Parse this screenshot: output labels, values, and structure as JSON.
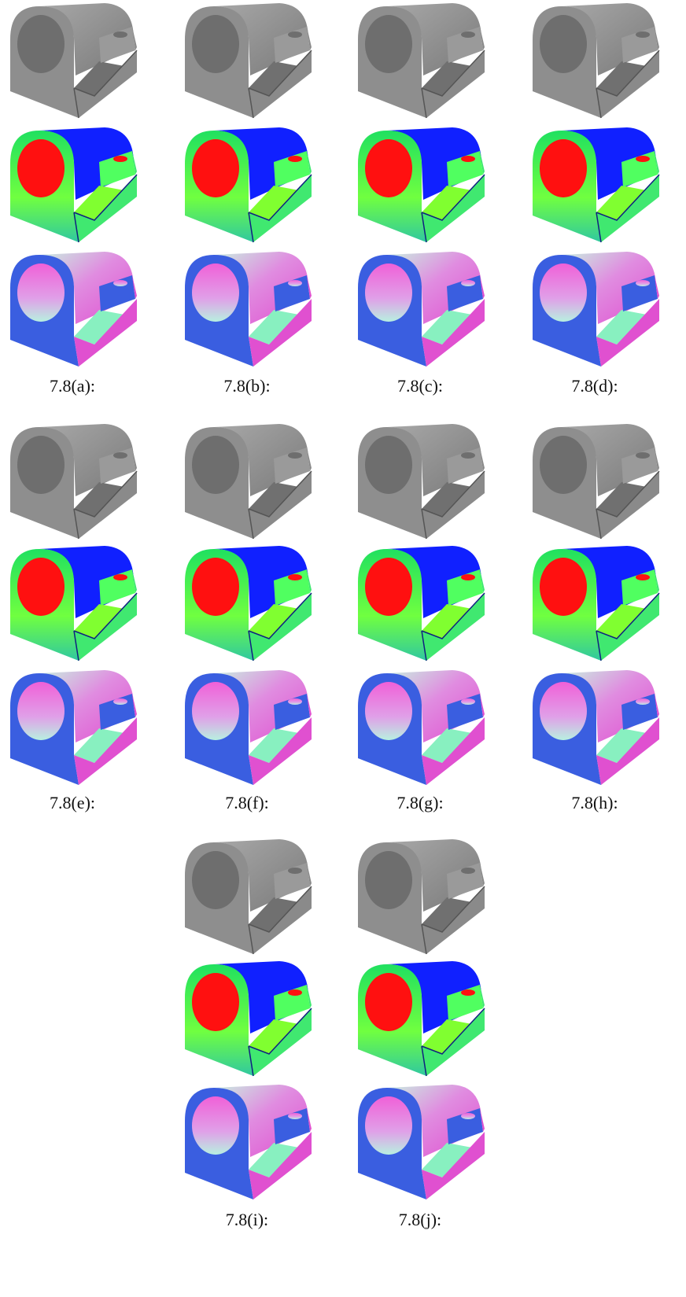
{
  "figure": {
    "captions": [
      "7.8(a):",
      "7.8(b):",
      "7.8(c):",
      "7.8(d):",
      "7.8(e):",
      "7.8(f):",
      "7.8(g):",
      "7.8(h):",
      "7.8(i):",
      "7.8(j):"
    ]
  }
}
